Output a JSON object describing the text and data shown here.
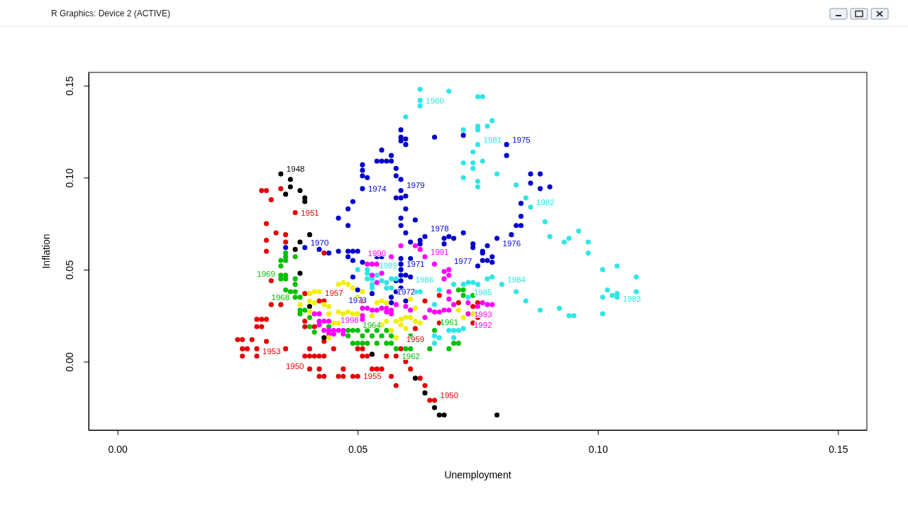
{
  "chart_data": {
    "type": "scatter",
    "title": "R Graphics: Device 2 (ACTIVE)",
    "xlabel": "Unemployment",
    "ylabel": "Inflation",
    "marker": "circle",
    "xlim": [
      -0.006,
      0.156
    ],
    "ylim": [
      -0.0372,
      0.1572
    ],
    "xticks": [
      {
        "value": 0,
        "label": "0.00"
      },
      {
        "value": 0.05,
        "label": "0.05"
      },
      {
        "value": 0.1,
        "label": "0.10"
      },
      {
        "value": 0.15,
        "label": "0.15"
      }
    ],
    "yticks": [
      {
        "value": 0,
        "label": "0.00"
      },
      {
        "value": 0.05,
        "label": "0.05"
      },
      {
        "value": 0.1,
        "label": "0.10"
      },
      {
        "value": 0.15,
        "label": "0.15"
      }
    ],
    "series": [
      {
        "color": "#e60000",
        "x": [
          0.037,
          0.029,
          0.04,
          0.066,
          0.05,
          0.042,
          0.062,
          0.03,
          0.031,
          0.034,
          0.032,
          0.031,
          0.033,
          0.035,
          0.031,
          0.035,
          0.031,
          0.043,
          0.032,
          0.032,
          0.034,
          0.029,
          0.03,
          0.031,
          0.029,
          0.03,
          0.025,
          0.026,
          0.028,
          0.031,
          0.026,
          0.027,
          0.029,
          0.026,
          0.035,
          0.04,
          0.039,
          0.041,
          0.042,
          0.043,
          0.045,
          0.04,
          0.042,
          0.042,
          0.043,
          0.047,
          0.046,
          0.047,
          0.049,
          0.039,
          0.043,
          0.039,
          0.039,
          0.041,
          0.043,
          0.051,
          0.05,
          0.051,
          0.051,
          0.052,
          0.056,
          0.058,
          0.053,
          0.054,
          0.055,
          0.057,
          0.058,
          0.06,
          0.061,
          0.063,
          0.064,
          0.065,
          0.059,
          0.064,
          0.067,
          0.067,
          0.071,
          0.074,
          0.075,
          0.075,
          0.074
        ],
        "values": [
          0.081,
          0.003,
          0.003,
          -0.021,
          -0.008,
          0.033,
          0.018,
          0.093,
          0.093,
          0.094,
          0.088,
          0.075,
          0.07,
          0.069,
          0.066,
          0.065,
          0.06,
          0.059,
          0.044,
          0.031,
          0.031,
          0.023,
          0.023,
          0.023,
          0.019,
          0.019,
          0.012,
          0.012,
          0.012,
          0.011,
          0.007,
          0.007,
          0.007,
          0.003,
          0.007,
          0.007,
          0.003,
          0.003,
          0.003,
          0.003,
          0.007,
          -0.004,
          -0.004,
          -0.008,
          -0.008,
          -0.004,
          -0.008,
          -0.008,
          -0.008,
          0.037,
          0.033,
          0.022,
          0.019,
          0.019,
          0.011,
          0.033,
          0.007,
          0.007,
          0.003,
          0.003,
          0.003,
          0.003,
          -0.004,
          -0.004,
          -0.004,
          -0.008,
          -0.013,
          0.0,
          -0.004,
          -0.009,
          -0.013,
          -0.021,
          0.007,
          0.033,
          0.036,
          0.021,
          0.032,
          0.021,
          0.024,
          0.032,
          0.03
        ]
      },
      {
        "color": "#00c000",
        "x": [
          0.034,
          0.037,
          0.056,
          0.058,
          0.066,
          0.035,
          0.035,
          0.035,
          0.034,
          0.034,
          0.037,
          0.034,
          0.035,
          0.035,
          0.037,
          0.037,
          0.035,
          0.036,
          0.037,
          0.038,
          0.038,
          0.039,
          0.038,
          0.04,
          0.04,
          0.041,
          0.044,
          0.048,
          0.049,
          0.048,
          0.049,
          0.05,
          0.051,
          0.05,
          0.052,
          0.054,
          0.051,
          0.053,
          0.055,
          0.057,
          0.052,
          0.054,
          0.056,
          0.057,
          0.06,
          0.061,
          0.061,
          0.065,
          0.069,
          0.07,
          0.071,
          0.072,
          0.074,
          0.071,
          0.072
        ],
        "values": [
          0.045,
          0.035,
          0.017,
          0.007,
          0.017,
          0.059,
          0.057,
          0.055,
          0.055,
          0.052,
          0.057,
          0.047,
          0.047,
          0.045,
          0.045,
          0.042,
          0.039,
          0.038,
          0.038,
          0.035,
          0.028,
          0.028,
          0.026,
          0.024,
          0.019,
          0.016,
          0.019,
          0.017,
          0.017,
          0.014,
          0.01,
          0.01,
          0.01,
          0.017,
          0.017,
          0.017,
          0.014,
          0.014,
          0.014,
          0.014,
          0.01,
          0.01,
          0.01,
          0.01,
          0.007,
          0.007,
          0.014,
          0.007,
          0.007,
          0.01,
          0.01,
          0.036,
          0.036,
          0.039,
          0.039
        ]
      },
      {
        "color": "#0000cd",
        "x": [
          0.039,
          0.051,
          0.059,
          0.081,
          0.064,
          0.079,
          0.075,
          0.059,
          0.05,
          0.057,
          0.059,
          0.059,
          0.06,
          0.059,
          0.06,
          0.066,
          0.072,
          0.081,
          0.055,
          0.057,
          0.054,
          0.055,
          0.056,
          0.057,
          0.051,
          0.051,
          0.051,
          0.052,
          0.058,
          0.058,
          0.059,
          0.06,
          0.058,
          0.059,
          0.06,
          0.059,
          0.062,
          0.059,
          0.06,
          0.072,
          0.049,
          0.048,
          0.046,
          0.048,
          0.042,
          0.044,
          0.046,
          0.048,
          0.049,
          0.05,
          0.048,
          0.049,
          0.035,
          0.049,
          0.061,
          0.063,
          0.063,
          0.068,
          0.068,
          0.069,
          0.07,
          0.074,
          0.074,
          0.076,
          0.076,
          0.077,
          0.078,
          0.076,
          0.077,
          0.078,
          0.054,
          0.055,
          0.059,
          0.061,
          0.051,
          0.059,
          0.059,
          0.06,
          0.061,
          0.058,
          0.059,
          0.053,
          0.058,
          0.059,
          0.057,
          0.06,
          0.086,
          0.088,
          0.086,
          0.088,
          0.09,
          0.084,
          0.084,
          0.083,
          0.084,
          0.082
        ],
        "values": [
          0.062,
          0.094,
          0.093,
          0.118,
          0.068,
          0.067,
          0.052,
          0.053,
          0.039,
          0.032,
          0.126,
          0.122,
          0.121,
          0.12,
          0.118,
          0.122,
          0.123,
          0.112,
          0.115,
          0.112,
          0.109,
          0.109,
          0.109,
          0.109,
          0.107,
          0.104,
          0.101,
          0.1,
          0.105,
          0.101,
          0.099,
          0.09,
          0.089,
          0.089,
          0.083,
          0.078,
          0.077,
          0.074,
          0.07,
          0.07,
          0.087,
          0.083,
          0.078,
          0.074,
          0.061,
          0.059,
          0.06,
          0.06,
          0.06,
          0.06,
          0.057,
          0.055,
          0.062,
          0.046,
          0.065,
          0.066,
          0.064,
          0.067,
          0.064,
          0.068,
          0.067,
          0.064,
          0.062,
          0.06,
          0.059,
          0.063,
          0.057,
          0.055,
          0.055,
          0.054,
          0.057,
          0.057,
          0.056,
          0.056,
          0.054,
          0.05,
          0.047,
          0.047,
          0.046,
          0.044,
          0.044,
          0.037,
          0.038,
          0.04,
          0.035,
          0.033,
          0.102,
          0.102,
          0.097,
          0.094,
          0.095,
          0.086,
          0.079,
          0.074,
          0.074,
          0.069
        ]
      },
      {
        "color": "#2ee6e6",
        "x": [
          0.063,
          0.075,
          0.086,
          0.054,
          0.067,
          0.073,
          0.08,
          0.104,
          0.063,
          0.069,
          0.063,
          0.06,
          0.075,
          0.076,
          0.072,
          0.075,
          0.075,
          0.077,
          0.078,
          0.074,
          0.076,
          0.072,
          0.074,
          0.074,
          0.072,
          0.079,
          0.075,
          0.075,
          0.083,
          0.085,
          0.089,
          0.09,
          0.093,
          0.094,
          0.096,
          0.098,
          0.098,
          0.101,
          0.104,
          0.108,
          0.102,
          0.101,
          0.103,
          0.104,
          0.108,
          0.101,
          0.083,
          0.085,
          0.088,
          0.092,
          0.094,
          0.095,
          0.05,
          0.052,
          0.052,
          0.052,
          0.053,
          0.053,
          0.055,
          0.056,
          0.057,
          0.058,
          0.056,
          0.057,
          0.053,
          0.062,
          0.063,
          0.066,
          0.07,
          0.072,
          0.073,
          0.074,
          0.075,
          0.077,
          0.078,
          0.066,
          0.069,
          0.07,
          0.071,
          0.072,
          0.07,
          0.067,
          0.066
        ],
        "values": [
          0.139,
          0.118,
          0.084,
          0.047,
          0.039,
          0.035,
          0.042,
          0.037,
          0.148,
          0.147,
          0.142,
          0.133,
          0.144,
          0.144,
          0.126,
          0.128,
          0.126,
          0.128,
          0.131,
          0.114,
          0.109,
          0.108,
          0.108,
          0.105,
          0.1,
          0.102,
          0.098,
          0.095,
          0.096,
          0.089,
          0.076,
          0.068,
          0.065,
          0.067,
          0.071,
          0.065,
          0.059,
          0.05,
          0.052,
          0.046,
          0.039,
          0.035,
          0.036,
          0.035,
          0.038,
          0.026,
          0.038,
          0.033,
          0.028,
          0.029,
          0.025,
          0.025,
          0.05,
          0.05,
          0.048,
          0.045,
          0.045,
          0.042,
          0.044,
          0.043,
          0.045,
          0.045,
          0.04,
          0.04,
          0.04,
          0.038,
          0.038,
          0.031,
          0.042,
          0.042,
          0.043,
          0.043,
          0.042,
          0.045,
          0.046,
          0.014,
          0.017,
          0.017,
          0.017,
          0.018,
          0.013,
          0.013,
          0.01
        ]
      },
      {
        "color": "#ff00ff",
        "x": [
          0.064,
          0.054,
          0.073,
          0.073,
          0.046,
          0.059,
          0.062,
          0.063,
          0.057,
          0.052,
          0.053,
          0.054,
          0.055,
          0.053,
          0.066,
          0.068,
          0.069,
          0.069,
          0.068,
          0.069,
          0.069,
          0.07,
          0.065,
          0.066,
          0.067,
          0.068,
          0.069,
          0.064,
          0.076,
          0.077,
          0.078,
          0.075,
          0.052,
          0.053,
          0.054,
          0.055,
          0.056,
          0.057,
          0.056,
          0.057,
          0.051,
          0.058,
          0.06,
          0.061,
          0.051,
          0.041,
          0.042,
          0.042,
          0.043,
          0.044,
          0.042,
          0.043,
          0.044,
          0.045,
          0.044,
          0.045,
          0.047,
          0.047,
          0.051
        ],
        "values": [
          0.057,
          0.053,
          0.032,
          0.026,
          0.017,
          0.063,
          0.063,
          0.061,
          0.057,
          0.053,
          0.053,
          0.043,
          0.048,
          0.047,
          0.053,
          0.049,
          0.05,
          0.047,
          0.045,
          0.038,
          0.034,
          0.031,
          0.028,
          0.027,
          0.027,
          0.028,
          0.028,
          0.024,
          0.032,
          0.031,
          0.031,
          0.03,
          0.029,
          0.028,
          0.028,
          0.029,
          0.029,
          0.028,
          0.027,
          0.026,
          0.029,
          0.031,
          0.03,
          0.028,
          0.025,
          0.026,
          0.026,
          0.022,
          0.022,
          0.022,
          0.02,
          0.017,
          0.017,
          0.017,
          0.015,
          0.015,
          0.017,
          0.015,
          0.023
        ]
      },
      {
        "color": "#f0f000",
        "x": [
          0.04,
          0.041,
          0.042,
          0.046,
          0.047,
          0.048,
          0.049,
          0.04,
          0.041,
          0.038,
          0.043,
          0.044,
          0.046,
          0.047,
          0.048,
          0.049,
          0.05,
          0.04,
          0.044,
          0.045,
          0.046,
          0.044,
          0.05,
          0.054,
          0.055,
          0.056,
          0.051,
          0.053,
          0.055,
          0.056,
          0.058,
          0.059,
          0.06,
          0.061,
          0.062,
          0.063,
          0.059,
          0.06,
          0.057,
          0.058,
          0.062,
          0.061,
          0.071,
          0.072,
          0.074
        ],
        "values": [
          0.037,
          0.038,
          0.038,
          0.042,
          0.043,
          0.042,
          0.04,
          0.033,
          0.032,
          0.031,
          0.031,
          0.03,
          0.027,
          0.026,
          0.027,
          0.026,
          0.026,
          0.027,
          0.026,
          0.021,
          0.021,
          0.013,
          0.035,
          0.032,
          0.033,
          0.032,
          0.038,
          0.025,
          0.02,
          0.022,
          0.022,
          0.023,
          0.024,
          0.024,
          0.022,
          0.021,
          0.02,
          0.018,
          0.017,
          0.013,
          0.029,
          0.034,
          0.028,
          0.024,
          0.026
        ]
      },
      {
        "color": "#000000",
        "x": [
          0.034,
          0.036,
          0.036,
          0.035,
          0.038,
          0.039,
          0.039,
          0.04,
          0.038,
          0.037,
          0.038,
          0.04,
          0.043,
          0.053,
          0.062,
          0.064,
          0.066,
          0.067,
          0.068,
          0.079
        ],
        "values": [
          0.102,
          0.099,
          0.095,
          0.091,
          0.093,
          0.089,
          0.087,
          0.069,
          0.065,
          0.061,
          0.048,
          0.03,
          0.013,
          0.004,
          -0.009,
          -0.017,
          -0.025,
          -0.029,
          -0.029,
          -0.029
        ]
      }
    ],
    "annotations": [
      {
        "text": "1948",
        "x": 0.034,
        "y": 0.102
      },
      {
        "text": "1951",
        "x": 0.037,
        "y": 0.081
      },
      {
        "text": "1953",
        "x": 0.029,
        "y": 0.003
      },
      {
        "text": "1950",
        "x": 0.04,
        "y": 0.003
      },
      {
        "text": "1950",
        "x": 0.066,
        "y": -0.021
      },
      {
        "text": "1955",
        "x": 0.05,
        "y": -0.008
      },
      {
        "text": "1957",
        "x": 0.042,
        "y": 0.033
      },
      {
        "text": "1959",
        "x": 0.062,
        "y": 0.018
      },
      {
        "text": "1969",
        "x": 0.034,
        "y": 0.045
      },
      {
        "text": "1968",
        "x": 0.037,
        "y": 0.035
      },
      {
        "text": "1964",
        "x": 0.056,
        "y": 0.017
      },
      {
        "text": "1962",
        "x": 0.058,
        "y": 0.007
      },
      {
        "text": "1961",
        "x": 0.066,
        "y": 0.017
      },
      {
        "text": "1970",
        "x": 0.039,
        "y": 0.062
      },
      {
        "text": "1974",
        "x": 0.051,
        "y": 0.094
      },
      {
        "text": "1979",
        "x": 0.059,
        "y": 0.093
      },
      {
        "text": "1975",
        "x": 0.081,
        "y": 0.118
      },
      {
        "text": "1978",
        "x": 0.064,
        "y": 0.068
      },
      {
        "text": "1976",
        "x": 0.079,
        "y": 0.067
      },
      {
        "text": "1977",
        "x": 0.075,
        "y": 0.052
      },
      {
        "text": "1971",
        "x": 0.059,
        "y": 0.053
      },
      {
        "text": "1973",
        "x": 0.05,
        "y": 0.039
      },
      {
        "text": "1972",
        "x": 0.057,
        "y": 0.032
      },
      {
        "text": "1980",
        "x": 0.063,
        "y": 0.139
      },
      {
        "text": "1981",
        "x": 0.075,
        "y": 0.118
      },
      {
        "text": "1982",
        "x": 0.086,
        "y": 0.084
      },
      {
        "text": "1989",
        "x": 0.054,
        "y": 0.047
      },
      {
        "text": "1986",
        "x": 0.067,
        "y": 0.039
      },
      {
        "text": "1985",
        "x": 0.073,
        "y": 0.035
      },
      {
        "text": "1984",
        "x": 0.08,
        "y": 0.042
      },
      {
        "text": "1983",
        "x": 0.104,
        "y": 0.037
      },
      {
        "text": "1991",
        "x": 0.064,
        "y": 0.057
      },
      {
        "text": "1990",
        "x": 0.054,
        "y": 0.053
      },
      {
        "text": "1993",
        "x": 0.073,
        "y": 0.032
      },
      {
        "text": "1992",
        "x": 0.073,
        "y": 0.026
      },
      {
        "text": "1998",
        "x": 0.046,
        "y": 0.017
      }
    ]
  }
}
